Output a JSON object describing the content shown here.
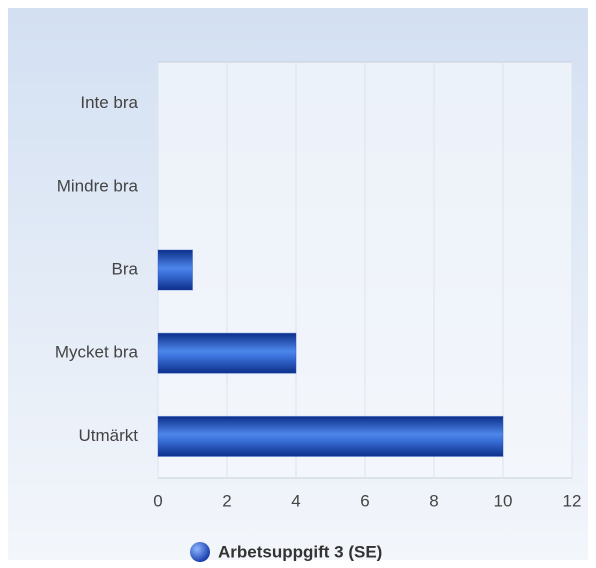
{
  "chart_data": {
    "type": "bar",
    "orientation": "horizontal",
    "categories": [
      "Inte bra",
      "Mindre bra",
      "Bra",
      "Mycket bra",
      "Utmärkt"
    ],
    "series": [
      {
        "name": "Arbetsuppgift 3 (SE)",
        "color": "#1f4fc4",
        "values": [
          0,
          0,
          1,
          4,
          10
        ]
      }
    ],
    "xlim": [
      0,
      12
    ],
    "xticks": [
      0,
      2,
      4,
      6,
      8,
      10,
      12
    ],
    "grid": true,
    "legend": "bottom"
  }
}
